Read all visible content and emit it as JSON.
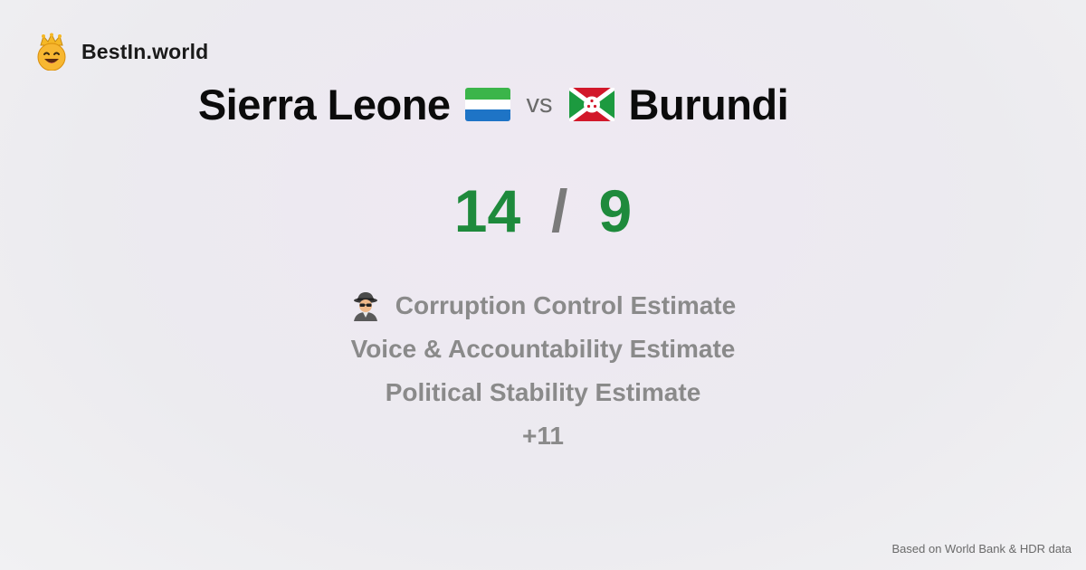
{
  "brand": {
    "name": "BestIn.world",
    "logo_icon": "crown-smiley-icon"
  },
  "comparison": {
    "country_a": {
      "name": "Sierra Leone",
      "flag_icon": "sierra-leone-flag-icon"
    },
    "vs_label": "vs",
    "country_b": {
      "name": "Burundi",
      "flag_icon": "burundi-flag-icon"
    }
  },
  "score": {
    "a": "14",
    "separator": "/",
    "b": "9",
    "color": "#1e8a3c"
  },
  "metrics": [
    {
      "label": "Corruption Control Estimate",
      "icon": "detective-icon"
    },
    {
      "label": "Voice & Accountability Estimate"
    },
    {
      "label": "Political Stability Estimate"
    }
  ],
  "more_label": "+11",
  "footer": {
    "source": "Based on World Bank & HDR data"
  }
}
